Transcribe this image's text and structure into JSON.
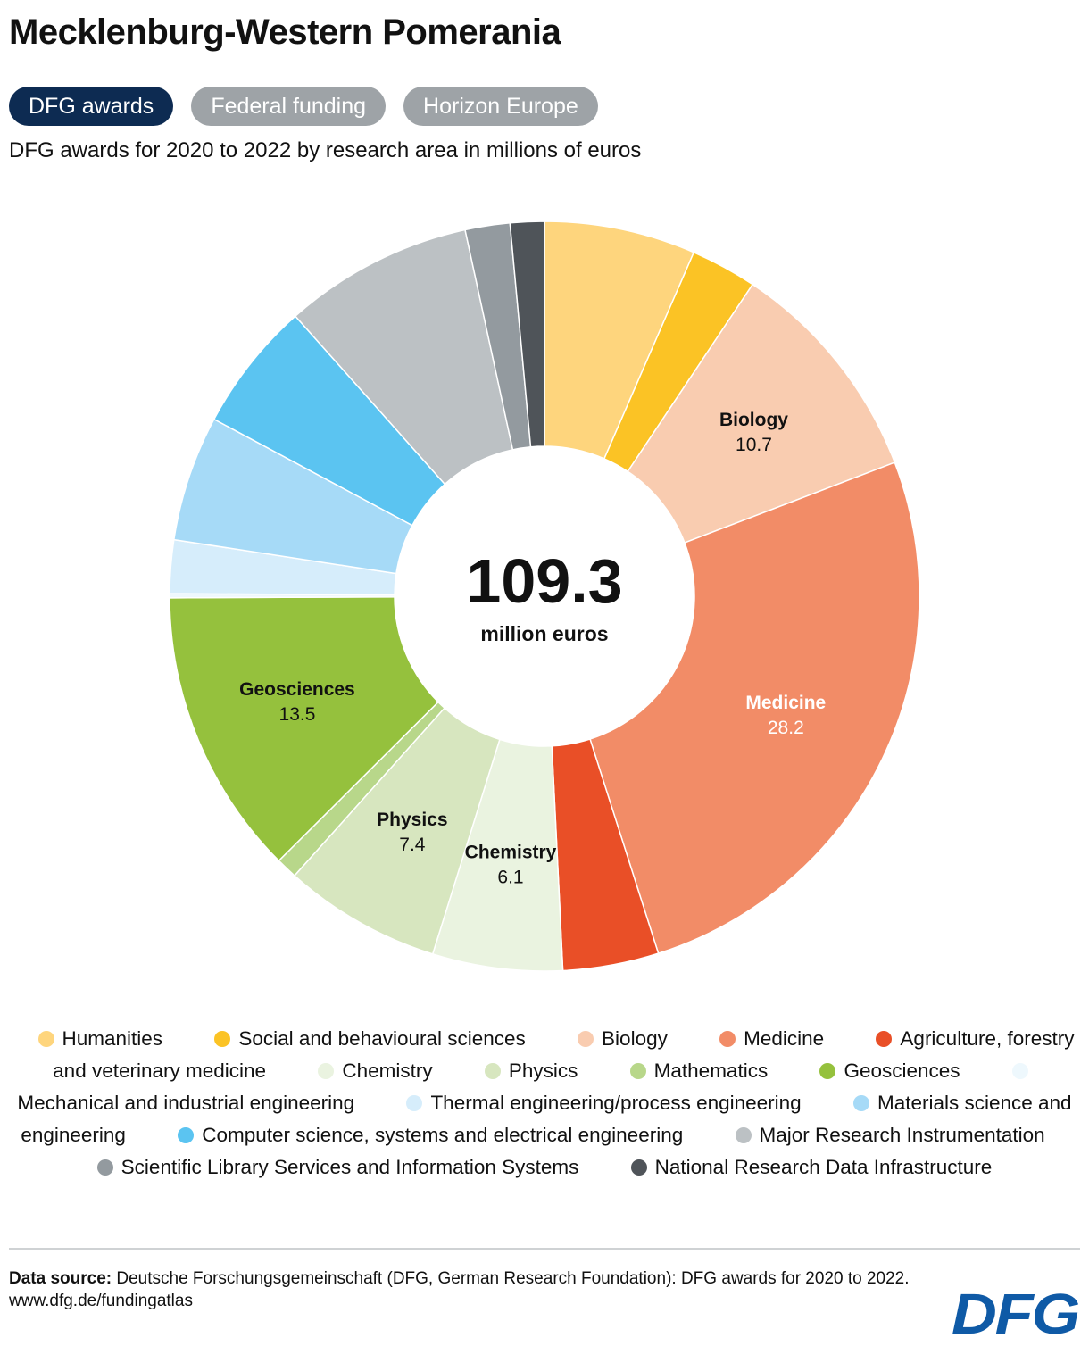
{
  "title": "Mecklenburg-Western Pomerania",
  "tabs": [
    {
      "label": "DFG awards",
      "active": true
    },
    {
      "label": "Federal funding",
      "active": false
    },
    {
      "label": "Horizon Europe",
      "active": false
    }
  ],
  "subtitle": "DFG awards for 2020 to 2022 by research area in millions of euros",
  "chart_data": {
    "type": "pie",
    "subtype": "donut",
    "unit": "million euros",
    "total": "109.3",
    "total_unit": "million euros",
    "slices": [
      {
        "label": "Humanities",
        "value": 7.1,
        "color": "#fed57d"
      },
      {
        "label": "Social and behavioural sciences",
        "value": 3.1,
        "color": "#fbc325"
      },
      {
        "label": "Biology",
        "value": 10.7,
        "color": "#f9ccb0",
        "data_label": "Biology",
        "data_value": "10.7"
      },
      {
        "label": "Medicine",
        "value": 28.2,
        "color": "#f28c67",
        "data_label": "Medicine",
        "data_value": "28.2"
      },
      {
        "label": "Agriculture, forestry and veterinary medicine",
        "value": 4.5,
        "color": "#e94f27"
      },
      {
        "label": "Chemistry",
        "value": 6.1,
        "color": "#eaf3e0",
        "data_label": "Chemistry",
        "data_value": "6.1"
      },
      {
        "label": "Physics",
        "value": 7.4,
        "color": "#d7e6bf",
        "data_label": "Physics",
        "data_value": "7.4"
      },
      {
        "label": "Mathematics",
        "value": 1.0,
        "color": "#b8d78a"
      },
      {
        "label": "Geosciences",
        "value": 13.5,
        "color": "#95c13d",
        "data_label": "Geosciences",
        "data_value": "13.5"
      },
      {
        "label": "Mechanical and industrial engineering",
        "value": 0.2,
        "color": "#eef8fd"
      },
      {
        "label": "Thermal engineering/process engineering",
        "value": 2.5,
        "color": "#d6edfb"
      },
      {
        "label": "Materials science and engineering",
        "value": 5.9,
        "color": "#a6daf7"
      },
      {
        "label": "Computer science, systems and electrical engineering",
        "value": 6.1,
        "color": "#5bc4f1"
      },
      {
        "label": "Major Research Instrumentation",
        "value": 8.9,
        "color": "#bcc1c4"
      },
      {
        "label": "Scientific Library Services and Information Systems",
        "value": 2.1,
        "color": "#939a9f"
      },
      {
        "label": "National Research Data Infrastructure",
        "value": 1.6,
        "color": "#4f5459"
      }
    ]
  },
  "legend": [
    {
      "label": "Humanities",
      "color": "#fed57d"
    },
    {
      "label": "Social and behavioural sciences",
      "color": "#fbc325"
    },
    {
      "label": "Biology",
      "color": "#f9ccb0"
    },
    {
      "label": "Medicine",
      "color": "#f28c67"
    },
    {
      "label": "Agriculture, forestry and veterinary medicine",
      "color": "#e94f27"
    },
    {
      "label": "Chemistry",
      "color": "#eaf3e0"
    },
    {
      "label": "Physics",
      "color": "#d7e6bf"
    },
    {
      "label": "Mathematics",
      "color": "#b8d78a"
    },
    {
      "label": "Geosciences",
      "color": "#95c13d"
    },
    {
      "label": "Mechanical and industrial engineering",
      "color": "#eef8fd"
    },
    {
      "label": "Thermal engineering/process engineering",
      "color": "#d6edfb"
    },
    {
      "label": "Materials science and engineering",
      "color": "#a6daf7"
    },
    {
      "label": "Computer science, systems and electrical engineering",
      "color": "#5bc4f1"
    },
    {
      "label": "Major Research Instrumentation",
      "color": "#bcc1c4"
    },
    {
      "label": "Scientific Library Services and Information Systems",
      "color": "#939a9f"
    },
    {
      "label": "National Research Data Infrastructure",
      "color": "#4f5459"
    }
  ],
  "source": {
    "label": "Data source:",
    "text": "Deutsche Forschungsgemeinschaft (DFG, German Research Foundation): DFG awards for 2020 to 2022.",
    "url": "www.dfg.de/fundingatlas"
  },
  "logo": {
    "text": "DFG",
    "color": "#0f5aa6"
  }
}
